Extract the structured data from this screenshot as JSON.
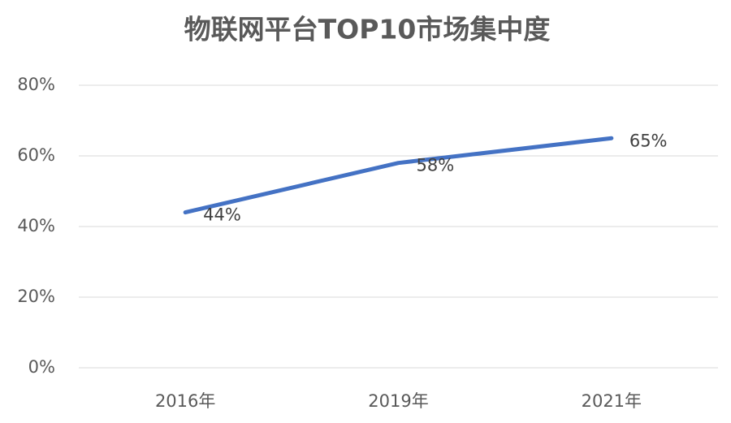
{
  "chart_data": {
    "type": "line",
    "title": "物联网平台TOP10市场集中度",
    "categories": [
      "2016年",
      "2019年",
      "2021年"
    ],
    "series": [
      {
        "color": "#4472c4",
        "values": [
          44,
          58,
          65
        ],
        "value_labels": [
          "44%",
          "58%",
          "65%"
        ]
      }
    ],
    "ylim": [
      0,
      80
    ],
    "yticks": [
      {
        "value": 0,
        "label": "0%"
      },
      {
        "value": 20,
        "label": "20%"
      },
      {
        "value": 40,
        "label": "40%"
      },
      {
        "value": 60,
        "label": "60%"
      },
      {
        "value": 80,
        "label": "80%"
      }
    ],
    "grid": true
  }
}
